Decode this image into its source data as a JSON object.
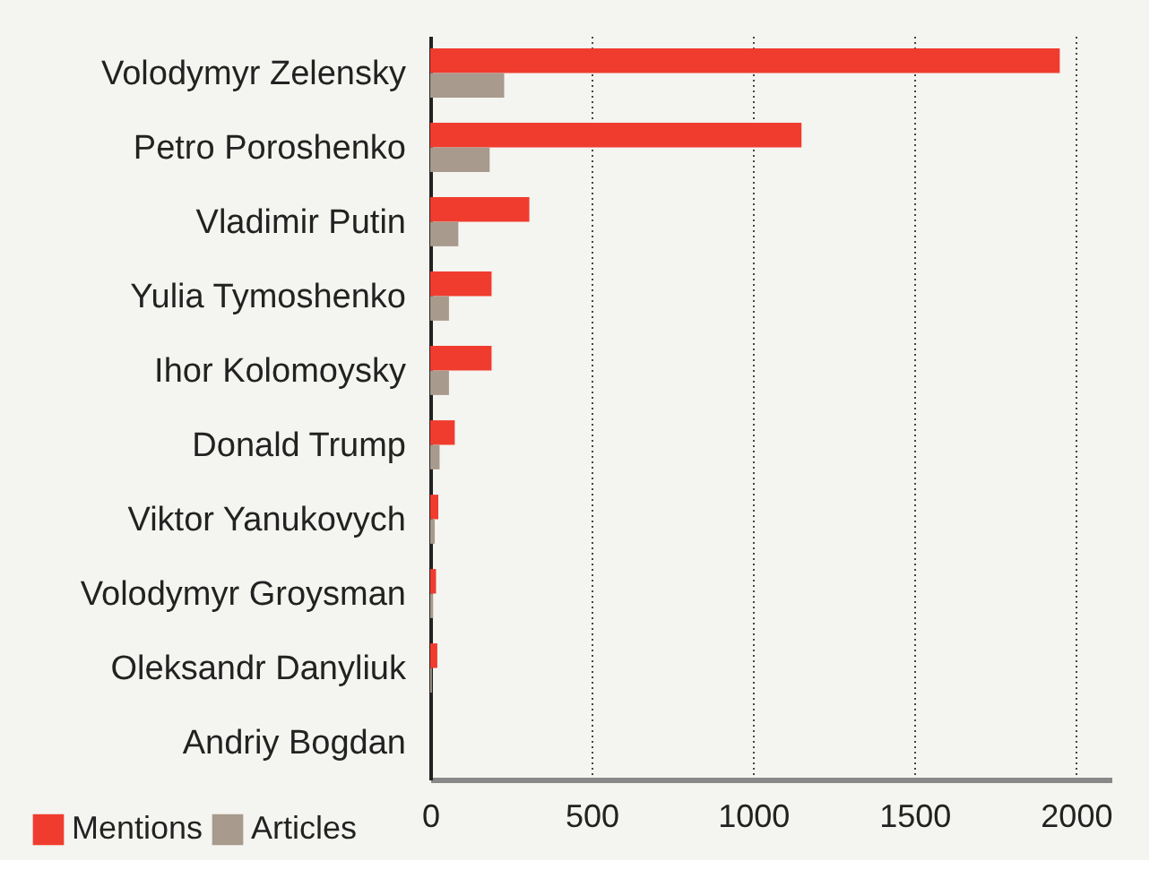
{
  "chart_data": {
    "type": "bar",
    "orientation": "horizontal",
    "categories": [
      "Volodymyr Zelensky",
      "Petro Poroshenko",
      "Vladimir Putin",
      "Yulia Tymoshenko",
      "Ihor Kolomoysky",
      "Donald Trump",
      "Viktor Yanukovych",
      "Volodymyr Groysman",
      "Oleksandr Danyliuk",
      "Andriy Bogdan"
    ],
    "series": [
      {
        "name": "Mentions",
        "color": "#f03c2e",
        "values": [
          1950,
          1150,
          307,
          190,
          190,
          76,
          25,
          18,
          22,
          0
        ]
      },
      {
        "name": "Articles",
        "color": "#a89a8c",
        "values": [
          229,
          184,
          87,
          58,
          58,
          29,
          14,
          9,
          5,
          0
        ]
      }
    ],
    "xlim": [
      0,
      2110
    ],
    "xticks": [
      0,
      500,
      1000,
      1500,
      2000
    ],
    "grid": "x",
    "legend": "bottom left"
  }
}
